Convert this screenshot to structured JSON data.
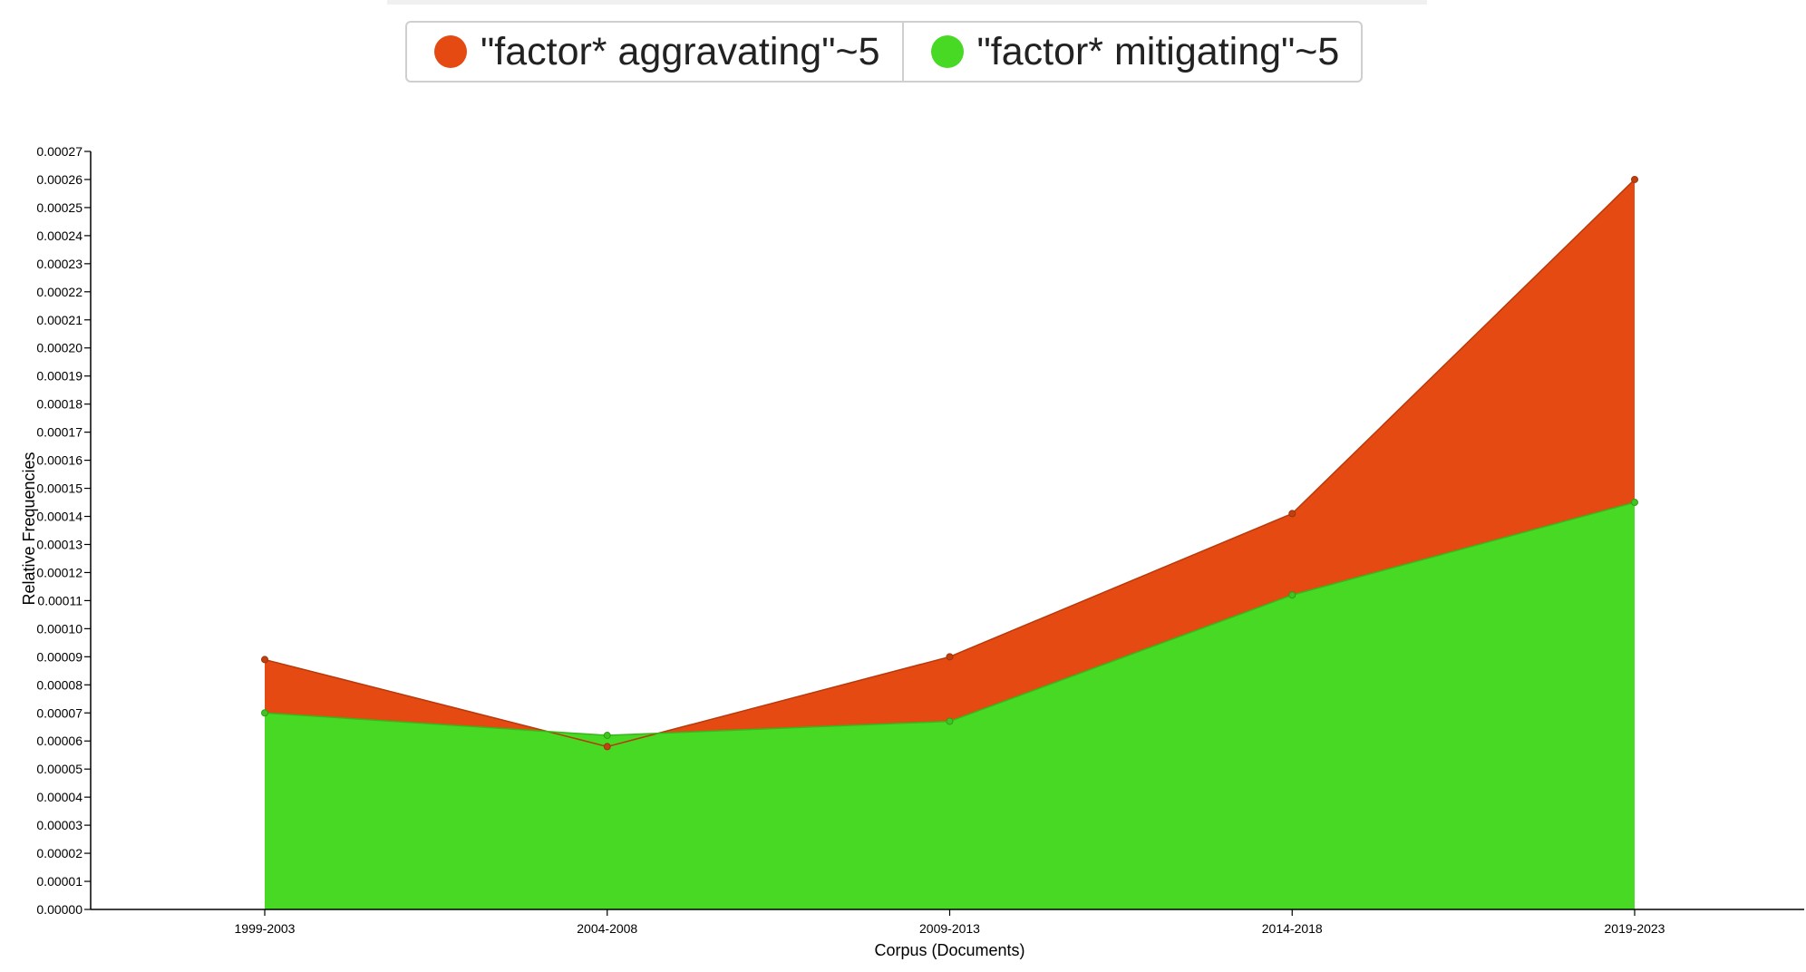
{
  "legend": {
    "items": [
      {
        "label": "\"factor* aggravating\"~5",
        "color": "#e44a12"
      },
      {
        "label": "\"factor* mitigating\"~5",
        "color": "#47d924"
      }
    ]
  },
  "chart_data": {
    "type": "area",
    "categories": [
      "1999-2003",
      "2004-2008",
      "2009-2013",
      "2014-2018",
      "2019-2023"
    ],
    "series": [
      {
        "name": "\"factor* aggravating\"~5",
        "values": [
          8.9e-05,
          5.8e-05,
          9e-05,
          0.000141,
          0.00026
        ],
        "color": "#e44a12"
      },
      {
        "name": "\"factor* mitigating\"~5",
        "values": [
          7e-05,
          6.2e-05,
          6.7e-05,
          0.000112,
          0.000145
        ],
        "color": "#47d924"
      }
    ],
    "xlabel": "Corpus (Documents)",
    "ylabel": "Relative Frequencies",
    "ylim": [
      0,
      0.00027
    ],
    "yticks": [
      "0.00000",
      "0.00001",
      "0.00002",
      "0.00003",
      "0.00004",
      "0.00005",
      "0.00006",
      "0.00007",
      "0.00008",
      "0.00009",
      "0.00010",
      "0.00011",
      "0.00012",
      "0.00013",
      "0.00014",
      "0.00015",
      "0.00016",
      "0.00017",
      "0.00018",
      "0.00019",
      "0.00020",
      "0.00021",
      "0.00022",
      "0.00023",
      "0.00024",
      "0.00025",
      "0.00026",
      "0.00027"
    ],
    "grid": false,
    "legend_position": "top-center"
  }
}
